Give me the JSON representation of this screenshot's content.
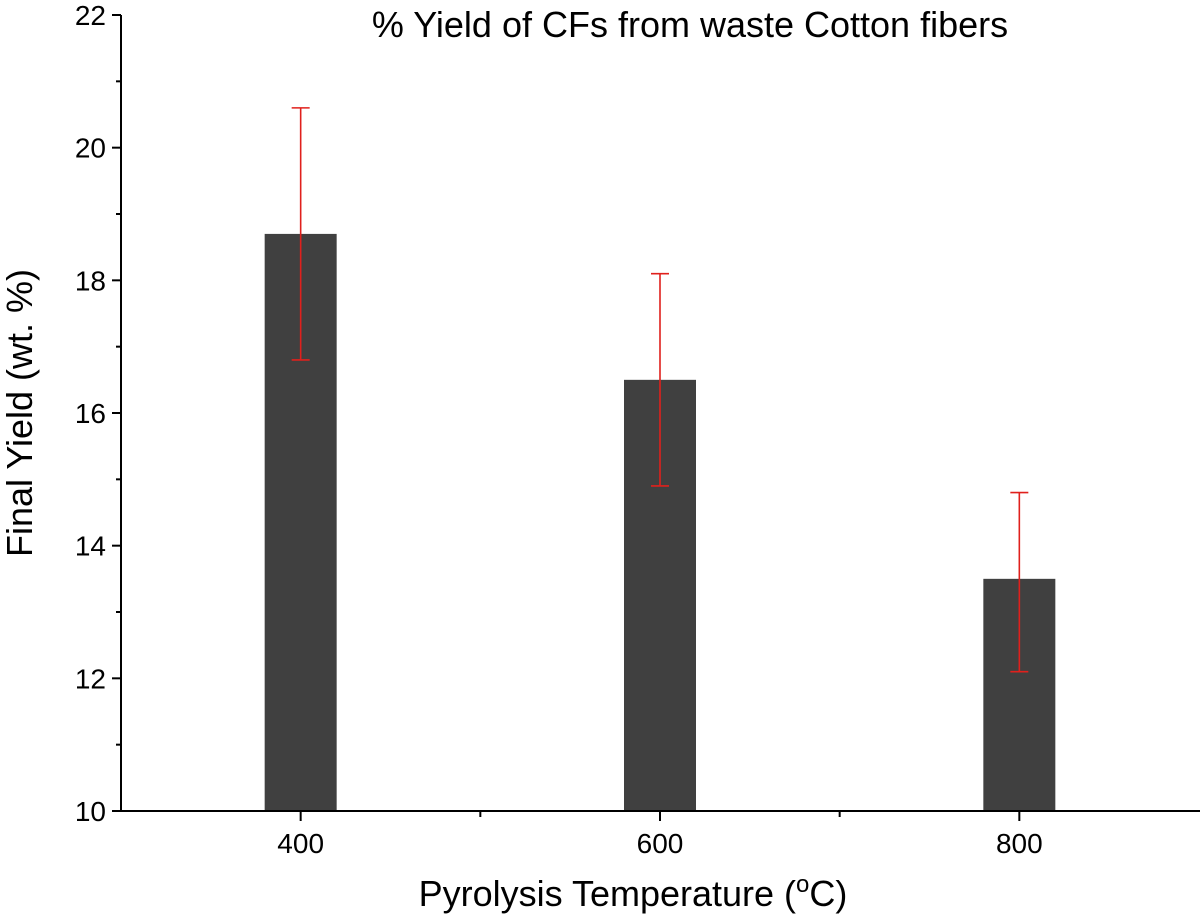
{
  "chart_data": {
    "type": "bar",
    "title": "% Yield of CFs from waste Cotton fibers",
    "xlabel": "Pyrolysis Temperature",
    "xlabel_unit_prefix": " (",
    "xlabel_unit_sup": "o",
    "xlabel_unit_suffix": "C)",
    "ylabel": "Final Yield (wt. %)",
    "x_tick_labels": [
      "400",
      "600",
      "800"
    ],
    "x": [
      400,
      600,
      800
    ],
    "xlim": [
      300,
      900
    ],
    "x_minor_ticks": [
      500,
      700
    ],
    "values": [
      18.7,
      16.5,
      13.5
    ],
    "error_upper": [
      20.6,
      18.1,
      14.8
    ],
    "error_lower": [
      16.8,
      14.9,
      12.1
    ],
    "ylim": [
      10,
      22
    ],
    "y_ticks": [
      10,
      12,
      14,
      16,
      18,
      20,
      22
    ],
    "y_tick_labels": [
      "10",
      "12",
      "14",
      "16",
      "18",
      "20",
      "22"
    ],
    "bar_color": "#404040",
    "error_color": "#e0201c",
    "grid": false,
    "legend": "none"
  }
}
